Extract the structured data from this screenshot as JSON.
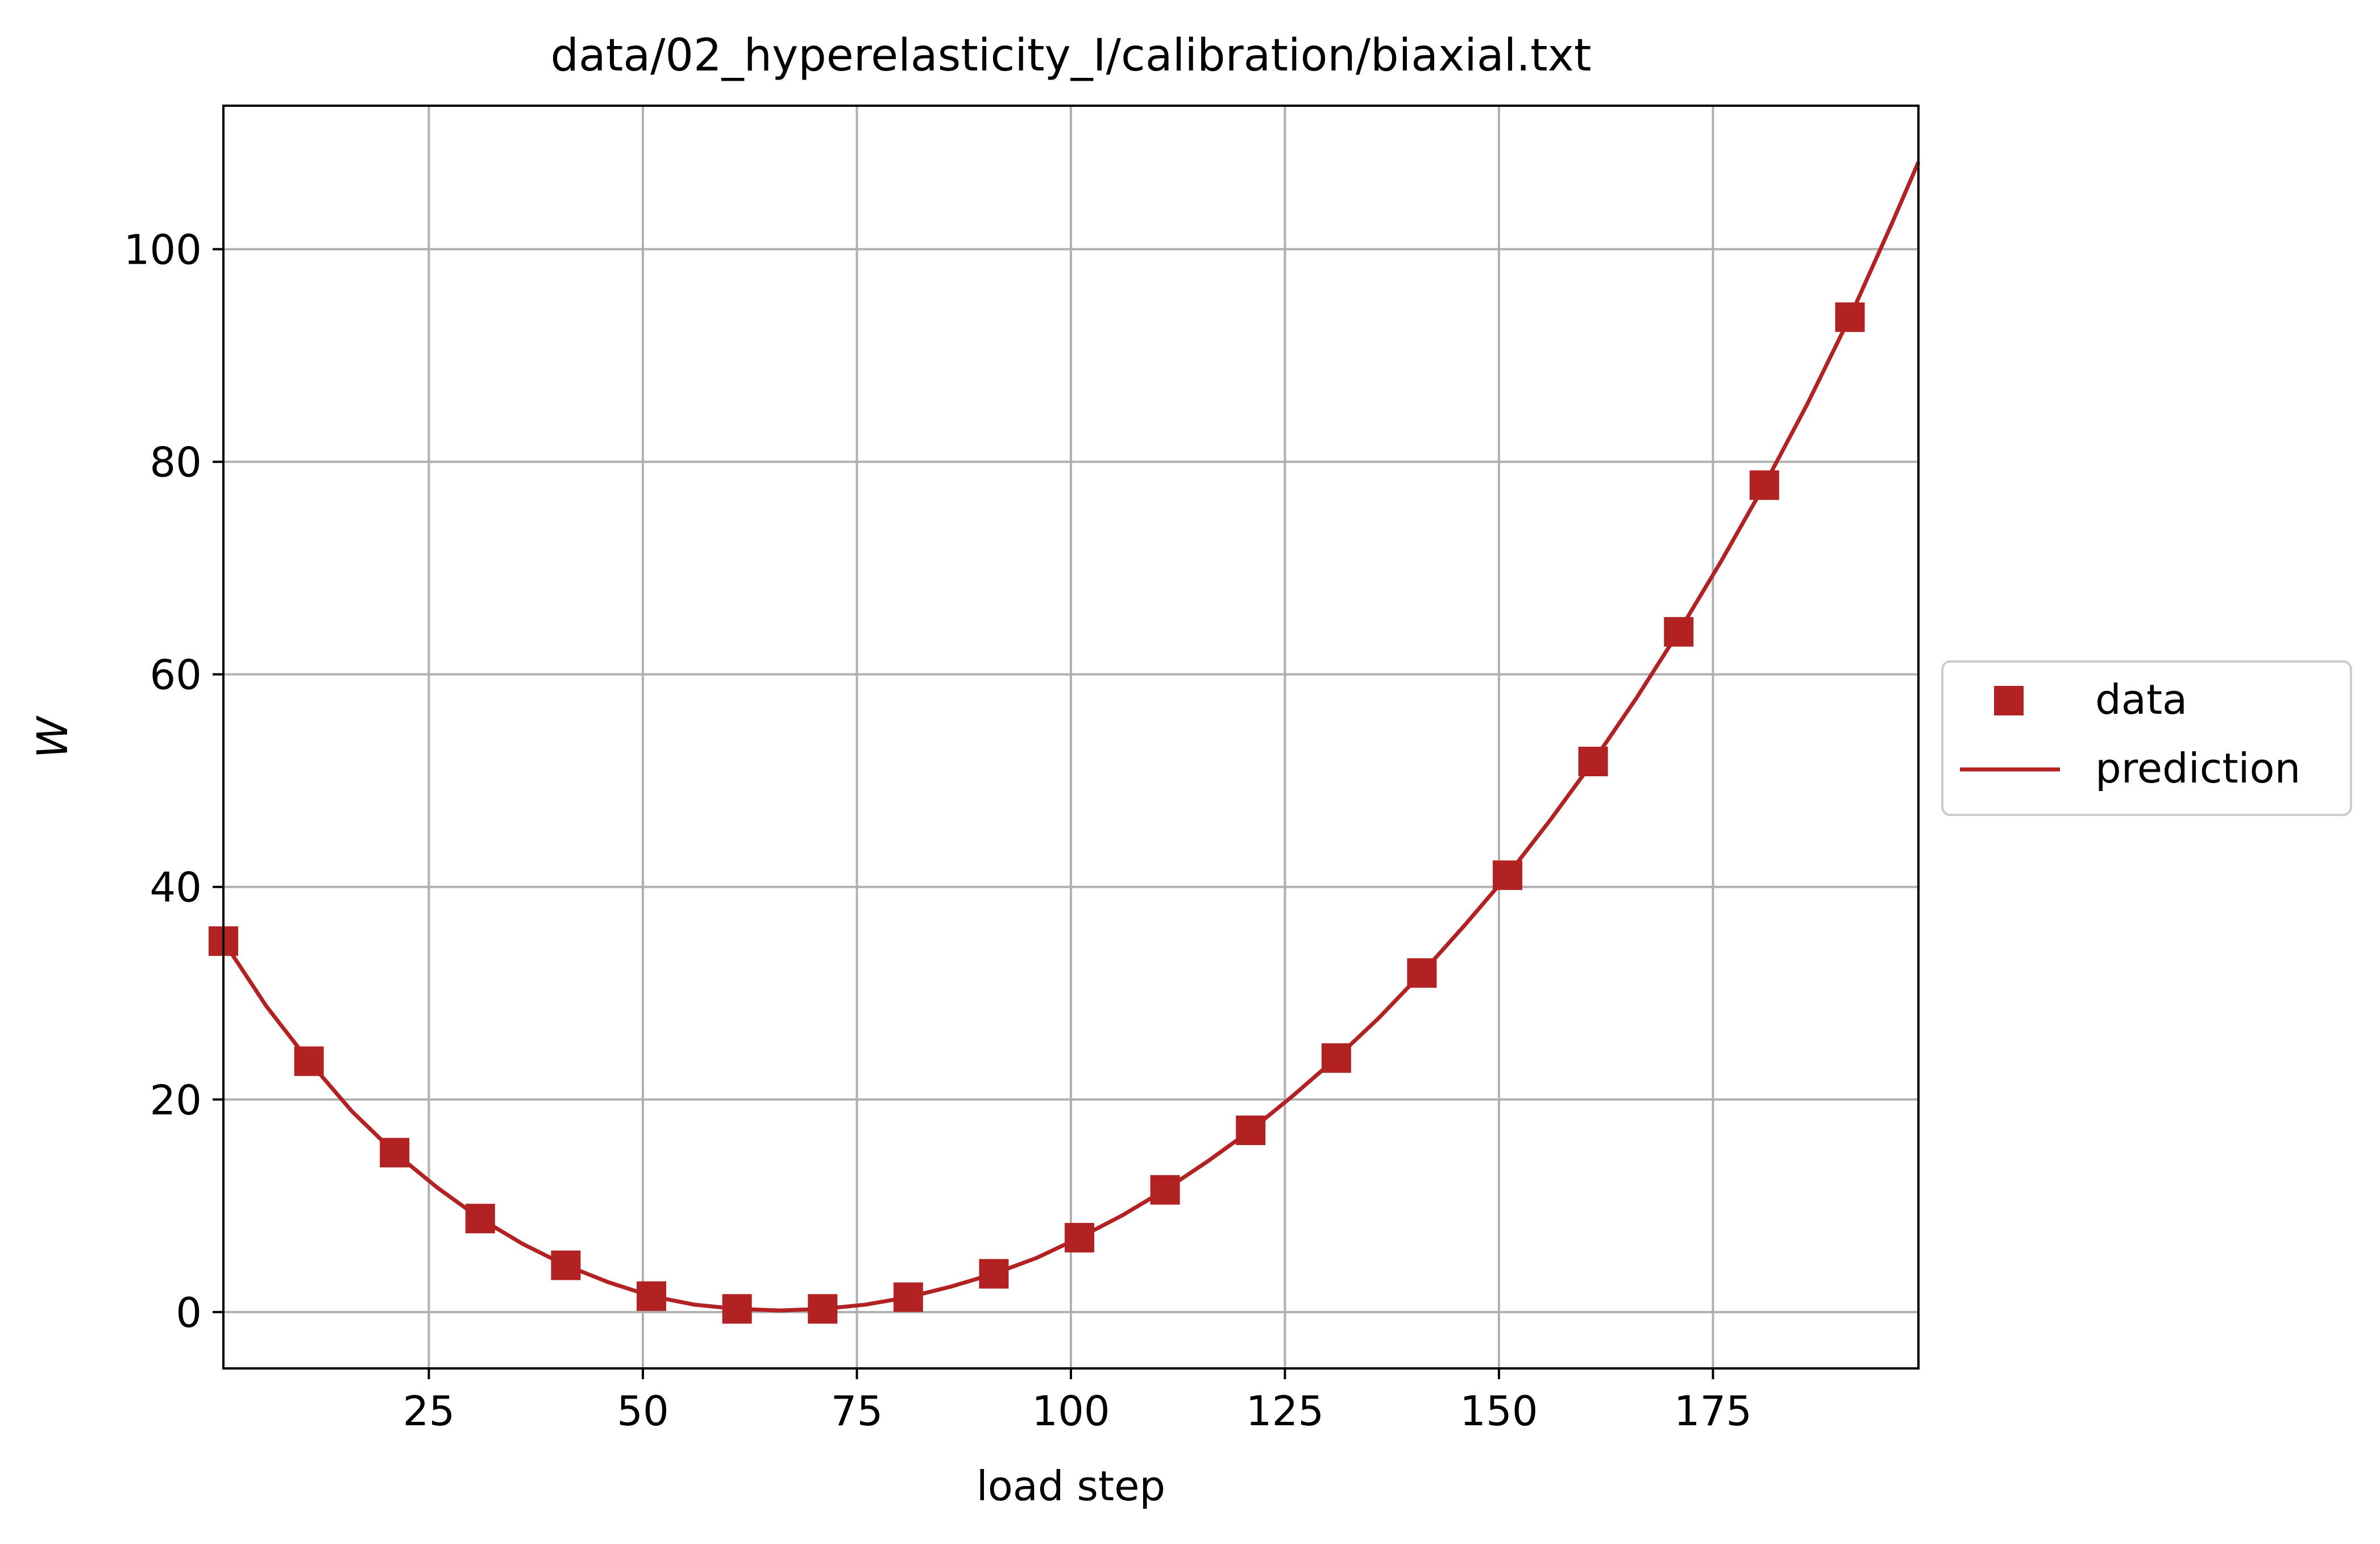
{
  "chart_data": {
    "type": "line",
    "title": "data/02_hyperelasticity_I/calibration/biaxial.txt",
    "xlabel": "load step",
    "ylabel": "W",
    "xlim": [
      1,
      199
    ],
    "ylim": [
      -5.3,
      113.5
    ],
    "xticks": [
      25,
      50,
      75,
      100,
      125,
      150,
      175
    ],
    "yticks": [
      0,
      20,
      40,
      60,
      80,
      100
    ],
    "grid": true,
    "legend_position": "center-right outside",
    "color": "#b22222",
    "series": [
      {
        "name": "data",
        "style": "square markers",
        "x": [
          1,
          11,
          21,
          31,
          41,
          51,
          61,
          71,
          81,
          91,
          101,
          111,
          121,
          131,
          141,
          151,
          161,
          171,
          181,
          191
        ],
        "y": [
          34.9,
          23.6,
          15.0,
          8.8,
          4.4,
          1.5,
          0.3,
          0.3,
          1.4,
          3.6,
          7.0,
          11.5,
          17.1,
          23.9,
          31.9,
          41.1,
          51.8,
          64.0,
          77.8,
          93.6
        ]
      },
      {
        "name": "prediction",
        "style": "solid line",
        "x": [
          1,
          6,
          11,
          16,
          21,
          26,
          31,
          36,
          41,
          46,
          51,
          56,
          61,
          66,
          71,
          76,
          81,
          86,
          91,
          96,
          101,
          106,
          111,
          116,
          121,
          126,
          131,
          136,
          141,
          146,
          151,
          156,
          161,
          166,
          171,
          176,
          181,
          186,
          191,
          196,
          199
        ],
        "y": [
          34.9,
          28.8,
          23.6,
          18.9,
          15.0,
          11.7,
          8.8,
          6.4,
          4.4,
          2.8,
          1.5,
          0.7,
          0.3,
          0.15,
          0.3,
          0.7,
          1.4,
          2.4,
          3.6,
          5.1,
          7.0,
          9.1,
          11.5,
          14.2,
          17.1,
          20.4,
          23.9,
          27.7,
          31.9,
          36.4,
          41.1,
          46.3,
          51.8,
          57.7,
          64.0,
          70.7,
          77.8,
          85.4,
          93.6,
          102.6,
          108.2
        ]
      }
    ]
  }
}
